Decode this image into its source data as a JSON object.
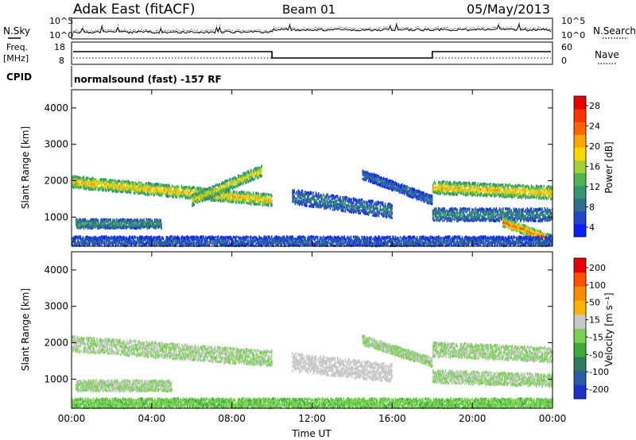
{
  "header": {
    "radar_title": "Adak East (fitACF)",
    "beam": "Beam 01",
    "date": "05/May/2013"
  },
  "noise_panel": {
    "left_label": "N.Sky",
    "right_label": "N.Search",
    "ticks_left": [
      "10^5",
      "10^0"
    ],
    "ticks_right": [
      "10^5",
      "10^0"
    ]
  },
  "freq_panel": {
    "left_label_1": "Freq.",
    "left_label_2": "[MHz]",
    "right_label": "Nave",
    "ticks_left": [
      "18",
      "8"
    ],
    "ticks_right": [
      "60",
      "0"
    ]
  },
  "cpid": {
    "label": "CPID",
    "text": "normalsound (fast) -157 RF"
  },
  "x_axis": {
    "label": "Time UT",
    "ticks": [
      "00:00",
      "04:00",
      "08:00",
      "12:00",
      "16:00",
      "20:00",
      "00:00"
    ]
  },
  "power_colorbar": {
    "label": "Power [dB]",
    "ticks": [
      "28",
      "24",
      "20",
      "16",
      "12",
      "8",
      "4"
    ],
    "colors": [
      "#0a1eff",
      "#2346c8",
      "#2d6e8c",
      "#32966e",
      "#50b450",
      "#a0d232",
      "#ffd700",
      "#ffa500",
      "#ff6400",
      "#ff3200",
      "#e60000"
    ]
  },
  "velocity_colorbar": {
    "label": "Velocity [m s⁻¹]",
    "ticks": [
      "200",
      "100",
      "50",
      "15",
      "-15",
      "-50",
      "-100",
      "-200"
    ],
    "colors": [
      "#1e32c8",
      "#2a5aaa",
      "#2e7d5a",
      "#3caa3c",
      "#78d250",
      "#c8c8c8",
      "#ffb400",
      "#ff8c00",
      "#ff5000",
      "#e60000"
    ]
  },
  "chart_data": [
    {
      "type": "heatmap",
      "name": "power",
      "ylabel": "Slant Range [km]",
      "xlabel": "Time UT",
      "ylim": [
        200,
        4500
      ],
      "xlim_hours": [
        0,
        24
      ],
      "yticks": [
        "1000",
        "2000",
        "3000",
        "4000"
      ],
      "colorbar_range_db": [
        0,
        30
      ],
      "bands": [
        {
          "t0": 0.0,
          "t1": 10.0,
          "center_start": 2000,
          "center_end": 1500,
          "width": 320,
          "value": 20
        },
        {
          "t0": 6.0,
          "t1": 9.5,
          "center_start": 1500,
          "center_end": 2300,
          "width": 300,
          "value": 18
        },
        {
          "t0": 0.2,
          "t1": 4.5,
          "center_start": 850,
          "center_end": 850,
          "width": 250,
          "value": 10
        },
        {
          "t0": 11.0,
          "t1": 16.0,
          "center_start": 1600,
          "center_end": 1200,
          "width": 400,
          "value": 8
        },
        {
          "t0": 14.5,
          "t1": 18.0,
          "center_start": 2200,
          "center_end": 1500,
          "width": 250,
          "value": 7
        },
        {
          "t0": 18.0,
          "t1": 24.0,
          "center_start": 1850,
          "center_end": 1700,
          "width": 350,
          "value": 20
        },
        {
          "t0": 18.0,
          "t1": 24.0,
          "center_start": 1100,
          "center_end": 1100,
          "width": 350,
          "value": 9
        },
        {
          "t0": 21.5,
          "t1": 24.0,
          "center_start": 900,
          "center_end": 400,
          "width": 250,
          "value": 24
        },
        {
          "t0": 0.0,
          "t1": 24.0,
          "center_start": 350,
          "center_end": 350,
          "width": 300,
          "value": 6
        }
      ]
    },
    {
      "type": "heatmap",
      "name": "velocity",
      "ylabel": "Slant Range [km]",
      "xlabel": "Time UT",
      "ylim": [
        200,
        4500
      ],
      "xlim_hours": [
        0,
        24
      ],
      "yticks": [
        "1000",
        "2000",
        "3000",
        "4000"
      ],
      "colorbar_range": [
        -250,
        250
      ],
      "bands": [
        {
          "t0": 0.0,
          "t1": 10.0,
          "center_start": 2000,
          "center_end": 1600,
          "width": 420,
          "value": 0
        },
        {
          "t0": 0.2,
          "t1": 5.0,
          "center_start": 850,
          "center_end": 850,
          "width": 300,
          "value": 0
        },
        {
          "t0": 11.0,
          "t1": 16.0,
          "center_start": 1500,
          "center_end": 1200,
          "width": 500,
          "value": 30
        },
        {
          "t0": 14.5,
          "t1": 18.0,
          "center_start": 2100,
          "center_end": 1500,
          "width": 250,
          "value": 0
        },
        {
          "t0": 18.0,
          "t1": 24.0,
          "center_start": 1850,
          "center_end": 1700,
          "width": 400,
          "value": 0
        },
        {
          "t0": 18.0,
          "t1": 24.0,
          "center_start": 1100,
          "center_end": 1000,
          "width": 350,
          "value": 0
        },
        {
          "t0": 0.0,
          "t1": 24.0,
          "center_start": 350,
          "center_end": 350,
          "width": 300,
          "value": -40
        }
      ]
    }
  ]
}
